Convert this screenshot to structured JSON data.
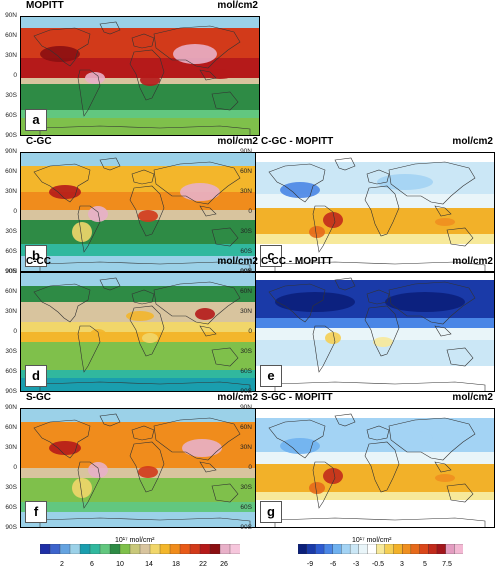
{
  "lat_ticks": [
    "90N",
    "60N",
    "30N",
    "0",
    "30S",
    "60S",
    "90S"
  ],
  "panels": [
    {
      "id": "a",
      "title": "MOPITT",
      "unit": "mol/cm2",
      "scale": "abs",
      "variant": "mopitt"
    },
    {
      "id": "b",
      "title": "C-GC",
      "unit": "mol/cm2",
      "scale": "abs",
      "variant": "cgc"
    },
    {
      "id": "c",
      "title": "C-GC - MOPITT",
      "unit": "mol/cm2",
      "scale": "diff",
      "variant": "diff_gc"
    },
    {
      "id": "d",
      "title": "C-CC",
      "unit": "mol/cm2",
      "scale": "abs",
      "variant": "ccc"
    },
    {
      "id": "e",
      "title": "C-CC - MOPITT",
      "unit": "mol/cm2",
      "scale": "diff",
      "variant": "diff_cc"
    },
    {
      "id": "f",
      "title": "S-GC",
      "unit": "mol/cm2",
      "scale": "abs",
      "variant": "sgc"
    },
    {
      "id": "g",
      "title": "S-GC - MOPITT",
      "unit": "mol/cm2",
      "scale": "diff",
      "variant": "diff_sgc"
    }
  ],
  "colorbars": {
    "abs": {
      "exponent_label": "10¹⁷ mol/cm²",
      "tick_labels": [
        "2",
        "6",
        "10",
        "14",
        "18",
        "22",
        "26"
      ],
      "colors": [
        "#1f2fa6",
        "#3d64cc",
        "#65a3e0",
        "#9bd1e8",
        "#1a9eae",
        "#31b89e",
        "#62c77f",
        "#2e8b45",
        "#7fc04b",
        "#c9c87a",
        "#d8c49e",
        "#f1d66a",
        "#f3b62b",
        "#f08c1c",
        "#e85a18",
        "#d23a1a",
        "#b51a1a",
        "#8b0f12",
        "#e8b0c8",
        "#f6c6dc"
      ]
    },
    "diff": {
      "exponent_label": "10¹⁷ mol/cm²",
      "tick_labels": [
        "-9",
        "-6",
        "-3",
        "-0.5",
        "3",
        "5",
        "7.5"
      ],
      "colors": [
        "#0b1f7a",
        "#1a3aa8",
        "#2e5bd0",
        "#4a86e6",
        "#6fb1ef",
        "#a3d3f4",
        "#cbe7f6",
        "#e9f5f9",
        "#ffffff",
        "#f7e99a",
        "#f5cf54",
        "#f2b129",
        "#ef8f1f",
        "#e66a1b",
        "#da471a",
        "#c22b1b",
        "#a2161b",
        "#e39cc0",
        "#f3b8d3"
      ]
    }
  }
}
